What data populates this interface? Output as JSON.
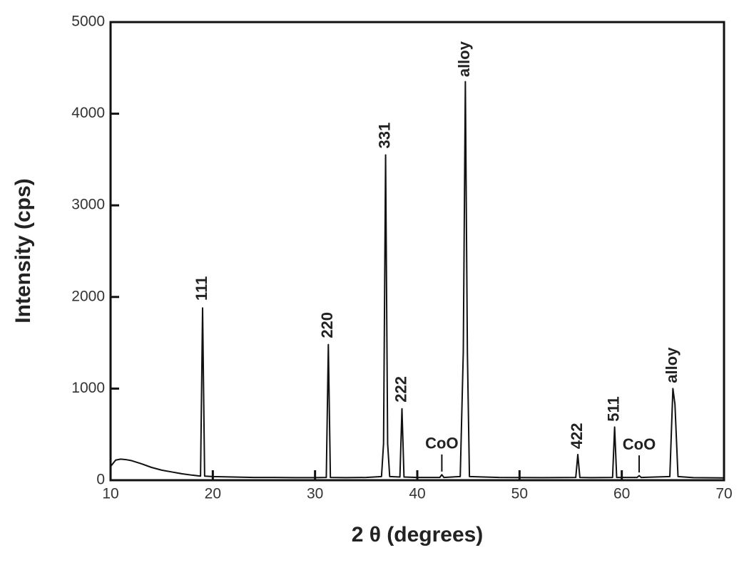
{
  "chart_data": {
    "type": "line",
    "xlabel": "2 θ (degrees)",
    "ylabel": "Intensity (cps)",
    "x": [
      10,
      10.5,
      11,
      11.5,
      12,
      13,
      14,
      15,
      16,
      17,
      18,
      18.8,
      19.0,
      19.2,
      20,
      22,
      24,
      26,
      28,
      30,
      31.1,
      31.3,
      31.5,
      33,
      35,
      36.5,
      36.7,
      36.9,
      37.1,
      37.3,
      38.3,
      38.5,
      38.7,
      40,
      42.2,
      42.4,
      42.6,
      44.2,
      44.5,
      44.7,
      44.9,
      45.1,
      48,
      52,
      55.5,
      55.7,
      55.9,
      57,
      59.1,
      59.3,
      59.5,
      61.5,
      61.7,
      61.9,
      64.7,
      65.0,
      65.2,
      65.5,
      67,
      70
    ],
    "values": [
      150,
      220,
      230,
      225,
      215,
      180,
      140,
      110,
      90,
      70,
      55,
      45,
      1880,
      45,
      40,
      35,
      30,
      30,
      28,
      28,
      30,
      1480,
      30,
      28,
      30,
      40,
      400,
      3550,
      400,
      40,
      35,
      780,
      35,
      30,
      30,
      60,
      30,
      40,
      1400,
      4350,
      1400,
      40,
      30,
      28,
      30,
      280,
      30,
      28,
      30,
      580,
      30,
      30,
      50,
      30,
      40,
      1000,
      830,
      40,
      28,
      25
    ],
    "color": "#111111",
    "xlim": [
      10,
      70
    ],
    "xticks": [
      10,
      20,
      30,
      40,
      50,
      60,
      70
    ],
    "ylim": [
      0,
      5000
    ],
    "yticks": [
      0,
      1000,
      2000,
      3000,
      4000,
      5000
    ],
    "annotations": [
      {
        "text": "111",
        "x": 19.0,
        "y": 1960,
        "rotate": true
      },
      {
        "text": "220",
        "x": 31.3,
        "y": 1550,
        "rotate": true
      },
      {
        "text": "331",
        "x": 36.9,
        "y": 3620,
        "rotate": true
      },
      {
        "text": "222",
        "x": 38.5,
        "y": 850,
        "rotate": true
      },
      {
        "text": "CoO",
        "x": 42.4,
        "y": 390,
        "rotate": false
      },
      {
        "text": "alloy",
        "x": 44.7,
        "y": 4400,
        "rotate": true
      },
      {
        "text": "422",
        "x": 55.7,
        "y": 340,
        "rotate": true
      },
      {
        "text": "511",
        "x": 59.3,
        "y": 640,
        "rotate": true
      },
      {
        "text": "CoO",
        "x": 61.7,
        "y": 380,
        "rotate": false
      },
      {
        "text": "alloy",
        "x": 65.0,
        "y": 1060,
        "rotate": true
      }
    ]
  }
}
